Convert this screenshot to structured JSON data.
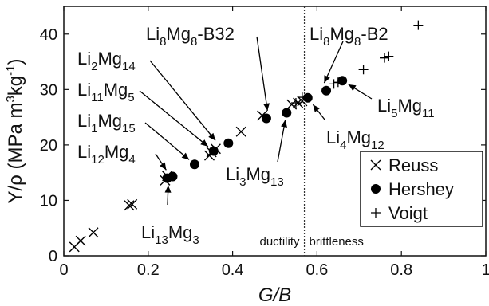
{
  "chart_data": {
    "type": "scatter",
    "xlabel": "G/B",
    "ylabel": "Y/ρ (MPa m3kg-1)",
    "xlim": [
      0,
      1
    ],
    "ylim": [
      0,
      45
    ],
    "x_ticks": [
      "0",
      "0.2",
      "0.4",
      "0.6",
      "0.8",
      "1"
    ],
    "y_ticks": [
      "0",
      "10",
      "20",
      "30",
      "40"
    ],
    "legend_position": "bottom-right",
    "series": [
      {
        "name": "Reuss",
        "marker": "x",
        "points": [
          [
            0.025,
            1.6
          ],
          [
            0.04,
            2.7
          ],
          [
            0.07,
            4.2
          ],
          [
            0.155,
            9.1
          ],
          [
            0.162,
            9.3
          ],
          [
            0.24,
            13.6
          ],
          [
            0.245,
            14.4
          ],
          [
            0.345,
            18.1
          ],
          [
            0.35,
            18.7
          ],
          [
            0.36,
            19.3
          ],
          [
            0.42,
            22.4
          ],
          [
            0.47,
            25.3
          ],
          [
            0.54,
            27.3
          ],
          [
            0.555,
            27.6
          ],
          [
            0.565,
            27.9
          ]
        ]
      },
      {
        "name": "Hershey",
        "marker": "dot",
        "points": [
          [
            0.245,
            14.0
          ],
          [
            0.258,
            14.3
          ],
          [
            0.31,
            16.5
          ],
          [
            0.355,
            18.9
          ],
          [
            0.39,
            20.3
          ],
          [
            0.48,
            24.8
          ],
          [
            0.528,
            25.8
          ],
          [
            0.578,
            28.5
          ],
          [
            0.622,
            29.8
          ],
          [
            0.66,
            31.6
          ]
        ]
      },
      {
        "name": "Voigt",
        "marker": "plus",
        "points": [
          [
            0.55,
            27.6
          ],
          [
            0.565,
            28.6
          ],
          [
            0.64,
            31.0
          ],
          [
            0.65,
            31.3
          ],
          [
            0.71,
            33.6
          ],
          [
            0.76,
            35.7
          ],
          [
            0.77,
            36.0
          ],
          [
            0.84,
            41.6
          ]
        ]
      }
    ],
    "annotations": [
      {
        "base": "Li",
        "n1": "8",
        "mid": "Mg",
        "n2": "8",
        "suffix": "-B32",
        "point": [
          0.485,
          24.9
        ]
      },
      {
        "base": "Li",
        "n1": "2",
        "mid": "Mg",
        "n2": "14",
        "suffix": "",
        "point": [
          0.37,
          19.8
        ]
      },
      {
        "base": "Li",
        "n1": "11",
        "mid": "Mg",
        "n2": "5",
        "suffix": "",
        "point": [
          0.355,
          18.9
        ]
      },
      {
        "base": "Li",
        "n1": "1",
        "mid": "Mg",
        "n2": "15",
        "suffix": "",
        "point": [
          0.31,
          16.5
        ]
      },
      {
        "base": "Li",
        "n1": "12",
        "mid": "Mg",
        "n2": "4",
        "suffix": "",
        "point": [
          0.252,
          14.4
        ]
      },
      {
        "base": "Li",
        "n1": "13",
        "mid": "Mg",
        "n2": "3",
        "suffix": "",
        "point": [
          0.248,
          14.0
        ]
      },
      {
        "base": "Li",
        "n1": "3",
        "mid": "Mg",
        "n2": "13",
        "suffix": "",
        "point": [
          0.528,
          25.8
        ]
      },
      {
        "base": "Li",
        "n1": "8",
        "mid": "Mg",
        "n2": "8",
        "suffix": "-B2",
        "point": [
          0.61,
          30.0
        ]
      },
      {
        "base": "Li",
        "n1": "4",
        "mid": "Mg",
        "n2": "12",
        "suffix": "",
        "point": [
          0.58,
          28.3
        ]
      },
      {
        "base": "Li",
        "n1": "5",
        "mid": "Mg",
        "n2": "11",
        "suffix": "",
        "point": [
          0.66,
          31.6
        ]
      }
    ],
    "divider": {
      "x": 0.57,
      "left_label": "ductility",
      "right_label": "brittleness"
    }
  }
}
